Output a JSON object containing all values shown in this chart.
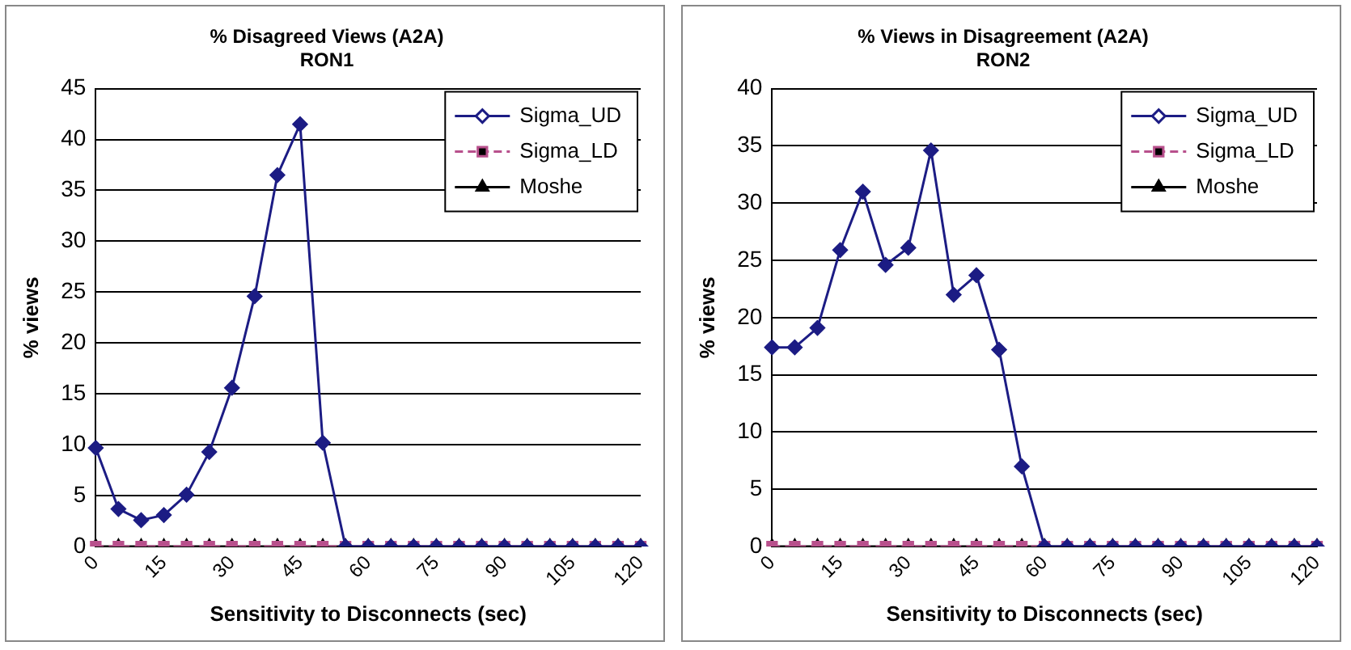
{
  "chart_data": [
    {
      "type": "line",
      "title": "% Disagreed Views (A2A)",
      "subtitle": "RON1",
      "xlabel": "Sensitivity to Disconnects (sec)",
      "ylabel": "% views",
      "categories": [
        "0",
        null,
        null,
        "15",
        null,
        null,
        "30",
        null,
        null,
        "45",
        null,
        null,
        "60",
        null,
        null,
        "75",
        null,
        null,
        "90",
        null,
        null,
        "105",
        null,
        null,
        "120"
      ],
      "series": [
        {
          "name": "Sigma_UD",
          "color": "#1c1c84",
          "marker": "diamond",
          "line_style": "solid",
          "values": [
            9.7,
            3.7,
            2.6,
            3.1,
            5.1,
            9.3,
            15.6,
            24.6,
            36.5,
            41.5,
            10.2,
            0,
            0,
            0,
            0,
            0,
            0,
            0,
            0,
            0,
            0,
            0,
            0,
            0,
            0
          ]
        },
        {
          "name": "Sigma_LD",
          "color": "#b8508c",
          "marker": "square",
          "line_style": "dashed",
          "values": [
            0,
            0,
            0,
            0,
            0,
            0,
            0,
            0,
            0,
            0,
            0,
            0,
            0,
            0,
            0,
            0,
            0,
            0,
            0,
            0,
            0,
            0,
            0,
            0,
            0
          ]
        },
        {
          "name": "Moshe",
          "color": "#000000",
          "marker": "triangle",
          "line_style": "solid",
          "values": [
            0,
            0,
            0,
            0,
            0,
            0,
            0,
            0,
            0,
            0,
            0,
            0,
            0,
            0,
            0,
            0,
            0,
            0,
            0,
            0,
            0,
            0,
            0,
            0,
            0
          ]
        }
      ],
      "ylim": [
        0,
        45
      ],
      "yticks": [
        0,
        5,
        10,
        15,
        20,
        25,
        30,
        35,
        40,
        45
      ],
      "grid": "y",
      "legend": "top right"
    },
    {
      "type": "line",
      "title": "% Views in Disagreement (A2A)",
      "subtitle": "RON2",
      "xlabel": "Sensitivity to Disconnects (sec)",
      "ylabel": "% views",
      "categories": [
        "0",
        null,
        null,
        "15",
        null,
        null,
        "30",
        null,
        null,
        "45",
        null,
        null,
        "60",
        null,
        null,
        "75",
        null,
        null,
        "90",
        null,
        null,
        "105",
        null,
        null,
        "120"
      ],
      "series": [
        {
          "name": "Sigma_UD",
          "color": "#1c1c84",
          "marker": "diamond",
          "line_style": "solid",
          "values": [
            17.4,
            17.4,
            19.1,
            25.9,
            31.0,
            24.6,
            26.1,
            34.6,
            22.0,
            23.7,
            17.2,
            7.0,
            0,
            0,
            0,
            0,
            0,
            0,
            0,
            0,
            0,
            0,
            0,
            0,
            0
          ]
        },
        {
          "name": "Sigma_LD",
          "color": "#b8508c",
          "marker": "square",
          "line_style": "dashed",
          "values": [
            0,
            0,
            0,
            0,
            0,
            0,
            0,
            0,
            0,
            0,
            0,
            0,
            0,
            0,
            0,
            0,
            0,
            0,
            0,
            0,
            0,
            0,
            0,
            0,
            0
          ]
        },
        {
          "name": "Moshe",
          "color": "#000000",
          "marker": "triangle",
          "line_style": "solid",
          "values": [
            0,
            0,
            0,
            0,
            0,
            0,
            0,
            0,
            0,
            0,
            0,
            0,
            0,
            0,
            0,
            0,
            0,
            0,
            0,
            0,
            0,
            0,
            0,
            0,
            0
          ]
        }
      ],
      "ylim": [
        0,
        40
      ],
      "yticks": [
        0,
        5,
        10,
        15,
        20,
        25,
        30,
        35,
        40
      ],
      "grid": "y",
      "legend": "top right"
    }
  ]
}
